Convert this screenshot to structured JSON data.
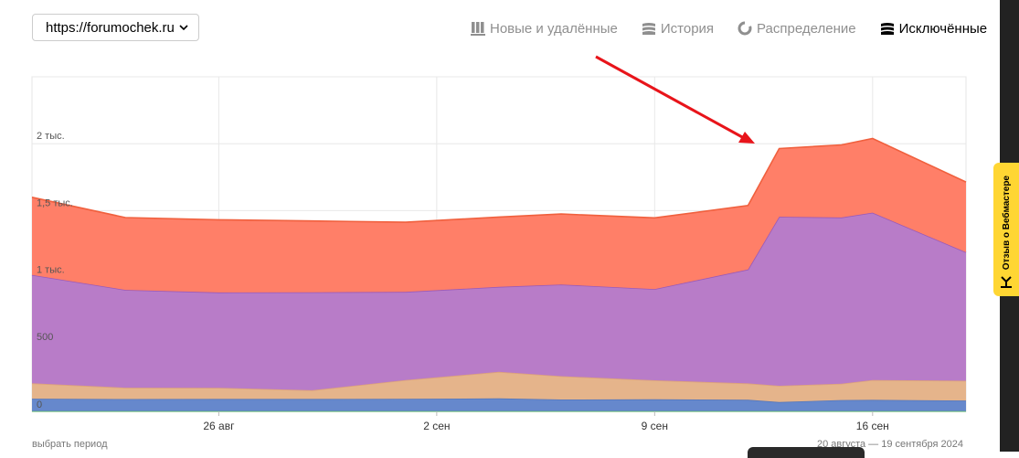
{
  "site_select": {
    "value": "https://forumochek.ru"
  },
  "tabs": [
    {
      "label": "Новые и удалённые",
      "icon": "bar-columns-icon",
      "active": false
    },
    {
      "label": "История",
      "icon": "stacked-layers-icon",
      "active": false
    },
    {
      "label": "Распределение",
      "icon": "pie-icon",
      "active": false
    },
    {
      "label": "Исключённые",
      "icon": "stacked-layers-icon",
      "active": true
    }
  ],
  "footer": {
    "period_link": "выбрать период",
    "date_range": "20 августа — 19 сентября 2024"
  },
  "feedback": {
    "label": "Отзыв о Вебмастере"
  },
  "chart_data": {
    "type": "area",
    "stacked": true,
    "x": [
      "2024-08-20",
      "2024-08-23",
      "2024-08-26",
      "2024-08-29",
      "2024-09-01",
      "2024-09-04",
      "2024-09-06",
      "2024-09-09",
      "2024-09-12",
      "2024-09-13",
      "2024-09-15",
      "2024-09-16",
      "2024-09-19"
    ],
    "x_ticks": [
      {
        "date": "2024-08-26",
        "label": "26 авг"
      },
      {
        "date": "2024-09-02",
        "label": "2 сен"
      },
      {
        "date": "2024-09-09",
        "label": "9 сен"
      },
      {
        "date": "2024-09-16",
        "label": "16 сен"
      }
    ],
    "y_ticks": [
      {
        "value": 0,
        "label": "0"
      },
      {
        "value": 500,
        "label": "500"
      },
      {
        "value": 1000,
        "label": "1 тыс."
      },
      {
        "value": 1500,
        "label": "1,5 тыс."
      },
      {
        "value": 2000,
        "label": "2 тыс."
      }
    ],
    "ylim": [
      0,
      2500
    ],
    "grid": true,
    "series": [
      {
        "color": "#66bb6a",
        "values": [
          2,
          2,
          2,
          2,
          2,
          2,
          2,
          2,
          2,
          2,
          2,
          2,
          2
        ]
      },
      {
        "color": "#6688cc",
        "values": [
          93,
          90,
          91,
          91,
          92,
          95,
          87,
          88,
          85,
          68,
          83,
          84,
          79
        ]
      },
      {
        "color": "#e5b48b",
        "values": [
          115,
          85,
          83,
          65,
          140,
          198,
          174,
          142,
          122,
          121,
          122,
          148,
          148
        ]
      },
      {
        "color": "#b87cc8",
        "values": [
          810,
          731,
          713,
          732,
          659,
          635,
          685,
          682,
          851,
          1263,
          1242,
          1251,
          960
        ]
      },
      {
        "color": "#ff7f68",
        "values": [
          580,
          540,
          543,
          533,
          520,
          522,
          527,
          532,
          478,
          510,
          542,
          554,
          525
        ]
      }
    ]
  }
}
